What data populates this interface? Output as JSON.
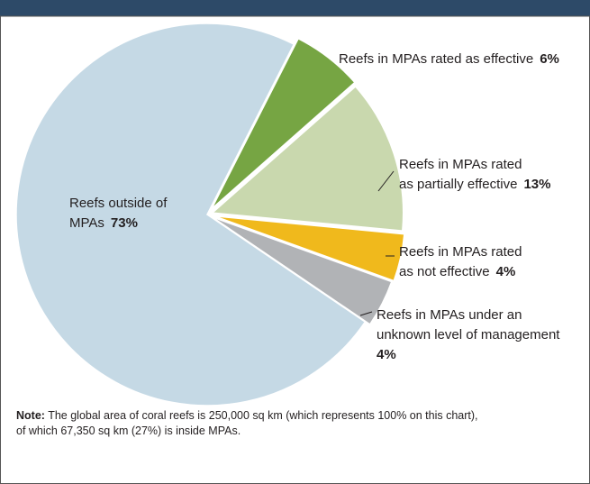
{
  "chart_data": {
    "type": "pie",
    "start_angle": 27,
    "slices": [
      {
        "label_lines": [
          "Reefs in MPAs rated as effective"
        ],
        "value": 6,
        "value_label": "6%",
        "color": "#76a543"
      },
      {
        "label_lines": [
          "Reefs in MPAs rated",
          "as partially effective"
        ],
        "value": 13,
        "value_label": "13%",
        "color": "#c9d8ae"
      },
      {
        "label_lines": [
          "Reefs in MPAs rated",
          "as not effective"
        ],
        "value": 4,
        "value_label": "4%",
        "color": "#f0b91c"
      },
      {
        "label_lines": [
          "Reefs in MPAs under an",
          "unknown level of management"
        ],
        "value": 4,
        "value_label": "4%",
        "color": "#b1b3b6"
      },
      {
        "label_lines": [
          "Reefs outside of",
          "MPAs"
        ],
        "value": 73,
        "value_label": "73%",
        "color": "#c5d9e5"
      }
    ],
    "note": {
      "lead": "Note:",
      "lines": [
        "The global area of coral reefs is 250,000 sq km (which represents 100% on this chart),",
        "of which 67,350 sq km (27%) is inside MPAs."
      ]
    }
  }
}
